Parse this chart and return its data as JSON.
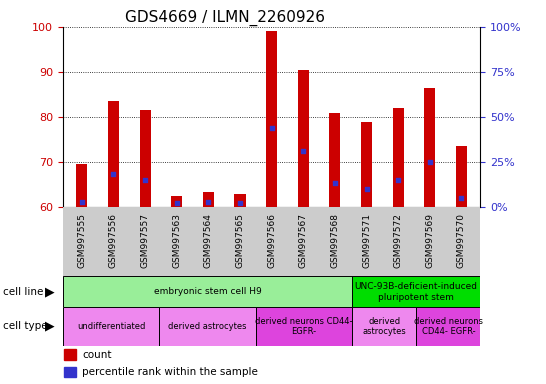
{
  "title": "GDS4669 / ILMN_2260926",
  "samples": [
    "GSM997555",
    "GSM997556",
    "GSM997557",
    "GSM997563",
    "GSM997564",
    "GSM997565",
    "GSM997566",
    "GSM997567",
    "GSM997568",
    "GSM997571",
    "GSM997572",
    "GSM997569",
    "GSM997570"
  ],
  "count_values": [
    69.5,
    83.5,
    81.5,
    62.5,
    63.5,
    63.0,
    99.0,
    90.5,
    81.0,
    79.0,
    82.0,
    86.5,
    73.5
  ],
  "percentile_values": [
    61.2,
    67.5,
    66.0,
    61.0,
    61.2,
    61.0,
    77.5,
    72.5,
    65.5,
    64.0,
    66.0,
    70.0,
    62.0
  ],
  "ylim": [
    60,
    100
  ],
  "yticks": [
    60,
    70,
    80,
    90,
    100
  ],
  "y2labels": [
    "0%",
    "25%",
    "50%",
    "75%",
    "100%"
  ],
  "bar_color": "#cc0000",
  "percentile_color": "#3333cc",
  "grid_color": "#000000",
  "cell_line_groups": [
    {
      "label": "embryonic stem cell H9",
      "start": 0,
      "end": 9,
      "color": "#99ee99"
    },
    {
      "label": "UNC-93B-deficient-induced\npluripotent stem",
      "start": 9,
      "end": 13,
      "color": "#00dd00"
    }
  ],
  "cell_type_groups": [
    {
      "label": "undifferentiated",
      "start": 0,
      "end": 3,
      "color": "#ee88ee"
    },
    {
      "label": "derived astrocytes",
      "start": 3,
      "end": 6,
      "color": "#ee88ee"
    },
    {
      "label": "derived neurons CD44-\nEGFR-",
      "start": 6,
      "end": 9,
      "color": "#dd44dd"
    },
    {
      "label": "derived\nastrocytes",
      "start": 9,
      "end": 11,
      "color": "#ee88ee"
    },
    {
      "label": "derived neurons\nCD44- EGFR-",
      "start": 11,
      "end": 13,
      "color": "#dd44dd"
    }
  ],
  "legend_items": [
    {
      "label": "count",
      "color": "#cc0000"
    },
    {
      "label": "percentile rank within the sample",
      "color": "#3333cc"
    }
  ],
  "left_tick_color": "#cc0000",
  "right_tick_color": "#3333cc",
  "title_fontsize": 11,
  "bar_width": 0.35,
  "xticklabel_bg": "#cccccc"
}
